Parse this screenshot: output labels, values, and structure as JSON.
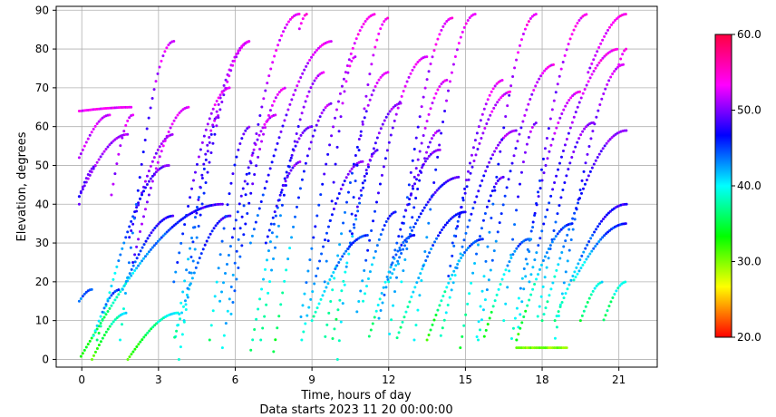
{
  "chart_data": {
    "type": "scatter",
    "xlabel": "Time, hours of day",
    "ylabel": "Elevation, degrees",
    "subtitle": "Data starts 2023 11 20 00:00:00",
    "xlim": [
      -1.0,
      22.5
    ],
    "ylim": [
      -2,
      91
    ],
    "xticks": [
      0,
      3,
      6,
      9,
      12,
      15,
      18,
      21
    ],
    "yticks": [
      0,
      10,
      20,
      30,
      40,
      50,
      60,
      70,
      80,
      90
    ],
    "grid": true,
    "colorbar": {
      "range": [
        20.0,
        60.0
      ],
      "ticks": [
        "20.0",
        "30.0",
        "40.0",
        "50.0",
        "60.0"
      ],
      "colormap": "gist_rainbow",
      "colors": [
        "#ff0000",
        "#ffff00",
        "#00ff00",
        "#00ffff",
        "#0000ff",
        "#ff00ff",
        "#ff0040"
      ]
    },
    "series_description": "Satellite elevation tracks colored by signal strength",
    "tracks": [
      {
        "start": -0.1,
        "end": 2.0,
        "peak_t": 1.1,
        "peak": 63,
        "start_elev": 52,
        "end_elev": 40,
        "c_low": 47,
        "c_high": 52
      },
      {
        "start": -0.1,
        "end": 3.6,
        "peak_t": 1.8,
        "peak": 58,
        "start_elev": 42,
        "end_elev": 30,
        "c_low": 46,
        "c_high": 51
      },
      {
        "start": -0.1,
        "end": 4.2,
        "peak_t": 2.0,
        "peak": 65,
        "start_elev": 64,
        "end_elev": 25,
        "c_low": 46,
        "c_high": 53
      },
      {
        "start": -0.1,
        "end": 5.5,
        "peak_t": -0.1,
        "peak": 40,
        "start_elev": 40,
        "end_elev": 0,
        "c_low": 32,
        "c_high": 48
      },
      {
        "start": -0.1,
        "end": 3.4,
        "peak_t": 0.6,
        "peak": 50,
        "start_elev": 42,
        "end_elev": 5,
        "c_low": 34,
        "c_high": 50
      },
      {
        "start": -0.1,
        "end": 1.5,
        "peak_t": 0.4,
        "peak": 18,
        "start_elev": 15,
        "end_elev": 5,
        "c_low": 36,
        "c_high": 45
      },
      {
        "start": 0.4,
        "end": 3.8,
        "peak_t": 1.8,
        "peak": 12,
        "start_elev": 0,
        "end_elev": 0,
        "c_low": 30,
        "c_high": 40
      },
      {
        "start": 1.5,
        "end": 6.6,
        "peak_t": 3.6,
        "peak": 82,
        "start_elev": 5,
        "end_elev": 3,
        "c_low": 38,
        "c_high": 53
      },
      {
        "start": 1.6,
        "end": 5.8,
        "peak_t": 3.6,
        "peak": 37,
        "start_elev": 18,
        "end_elev": 5,
        "c_low": 36,
        "c_high": 48
      },
      {
        "start": 3.6,
        "end": 8.0,
        "peak_t": 5.8,
        "peak": 70,
        "start_elev": 20,
        "end_elev": 10,
        "c_low": 40,
        "c_high": 53
      },
      {
        "start": 4.0,
        "end": 7.6,
        "peak_t": 5.4,
        "peak": 63,
        "start_elev": 10,
        "end_elev": 15,
        "c_low": 38,
        "c_high": 52
      },
      {
        "start": 3.8,
        "end": 9.8,
        "peak_t": 6.6,
        "peak": 82,
        "start_elev": 0,
        "end_elev": 30,
        "c_low": 38,
        "c_high": 53
      },
      {
        "start": 5.0,
        "end": 9.0,
        "peak_t": 6.6,
        "peak": 60,
        "start_elev": 5,
        "end_elev": 2,
        "c_low": 36,
        "c_high": 50
      },
      {
        "start": 5.5,
        "end": 8.8,
        "peak_t": 8.5,
        "peak": 89,
        "start_elev": 3,
        "end_elev": 85,
        "c_low": 40,
        "c_high": 54
      },
      {
        "start": 8.5,
        "end": 11.5,
        "peak_t": 8.5,
        "peak": 89,
        "start_elev": 89,
        "end_elev": 8,
        "c_low": 40,
        "c_high": 54
      },
      {
        "start": 7.0,
        "end": 12.0,
        "peak_t": 9.5,
        "peak": 74,
        "start_elev": 5,
        "end_elev": 5,
        "c_low": 36,
        "c_high": 52
      },
      {
        "start": 7.5,
        "end": 12.5,
        "peak_t": 9.8,
        "peak": 66,
        "start_elev": 2,
        "end_elev": 5,
        "c_low": 34,
        "c_high": 51
      },
      {
        "start": 7.2,
        "end": 11.0,
        "peak_t": 8.6,
        "peak": 51,
        "start_elev": 30,
        "end_elev": 5,
        "c_low": 38,
        "c_high": 50
      },
      {
        "start": 9.5,
        "end": 13.5,
        "peak_t": 10.7,
        "peak": 78,
        "start_elev": 20,
        "end_elev": 10,
        "c_low": 40,
        "c_high": 53
      },
      {
        "start": 10.0,
        "end": 14.5,
        "peak_t": 12.0,
        "peak": 88,
        "start_elev": 0,
        "end_elev": 5,
        "c_low": 38,
        "c_high": 54
      },
      {
        "start": 10.5,
        "end": 14.0,
        "peak_t": 11.6,
        "peak": 54,
        "start_elev": 30,
        "end_elev": 10,
        "c_low": 40,
        "c_high": 50
      },
      {
        "start": 9.0,
        "end": 13.0,
        "peak_t": 11.2,
        "peak": 32,
        "start_elev": 10,
        "end_elev": 5,
        "c_low": 34,
        "c_high": 46
      },
      {
        "start": 11.0,
        "end": 15.0,
        "peak_t": 12.3,
        "peak": 38,
        "start_elev": 15,
        "end_elev": 5,
        "c_low": 34,
        "c_high": 47
      },
      {
        "start": 12.5,
        "end": 17.0,
        "peak_t": 14.0,
        "peak": 59,
        "start_elev": 20,
        "end_elev": 5,
        "c_low": 36,
        "c_high": 51
      },
      {
        "start": 12.8,
        "end": 16.5,
        "peak_t": 14.3,
        "peak": 72,
        "start_elev": 40,
        "end_elev": 20,
        "c_low": 40,
        "c_high": 53
      },
      {
        "start": 12.0,
        "end": 16.5,
        "peak_t": 14.8,
        "peak": 47,
        "start_elev": 20,
        "end_elev": 3,
        "c_low": 34,
        "c_high": 49
      },
      {
        "start": 13.0,
        "end": 17.8,
        "peak_t": 15.4,
        "peak": 89,
        "start_elev": 5,
        "end_elev": 3,
        "c_low": 38,
        "c_high": 54
      },
      {
        "start": 13.5,
        "end": 17.5,
        "peak_t": 15.7,
        "peak": 31,
        "start_elev": 5,
        "end_elev": 5,
        "c_low": 30,
        "c_high": 45
      },
      {
        "start": 14.5,
        "end": 19.5,
        "peak_t": 16.8,
        "peak": 69,
        "start_elev": 30,
        "end_elev": 5,
        "c_low": 38,
        "c_high": 53
      },
      {
        "start": 15.5,
        "end": 21.2,
        "peak_t": 18.5,
        "peak": 76,
        "start_elev": 5,
        "end_elev": 5,
        "c_low": 38,
        "c_high": 53
      },
      {
        "start": 16.5,
        "end": 20.0,
        "peak_t": 17.8,
        "peak": 61,
        "start_elev": 10,
        "end_elev": 10,
        "c_low": 36,
        "c_high": 51
      },
      {
        "start": 17.0,
        "end": 21.3,
        "peak_t": 19.8,
        "peak": 89,
        "start_elev": 5,
        "end_elev": 74,
        "c_low": 38,
        "c_high": 54
      },
      {
        "start": 17.5,
        "end": 21.3,
        "peak_t": 21.0,
        "peak": 80,
        "start_elev": 20,
        "end_elev": 76,
        "c_low": 38,
        "c_high": 54
      },
      {
        "start": 18.0,
        "end": 21.3,
        "peak_t": 21.3,
        "peak": 59,
        "start_elev": 10,
        "end_elev": 59,
        "c_low": 34,
        "c_high": 51
      },
      {
        "start": 18.5,
        "end": 21.3,
        "peak_t": 21.3,
        "peak": 40,
        "start_elev": 10,
        "end_elev": 40,
        "c_low": 34,
        "c_high": 48
      },
      {
        "start": 17.0,
        "end": 21.3,
        "peak_t": 19.2,
        "peak": 35,
        "start_elev": 5,
        "end_elev": 20,
        "c_low": 30,
        "c_high": 46
      },
      {
        "start": 17.0,
        "end": 19.0,
        "peak_t": 17.5,
        "peak": 3,
        "start_elev": 3,
        "end_elev": 3,
        "c_low": 28,
        "c_high": 30
      },
      {
        "start": 19.5,
        "end": 21.3,
        "peak_t": 20.4,
        "peak": 20,
        "start_elev": 10,
        "end_elev": 10,
        "c_low": 30,
        "c_high": 40
      }
    ]
  }
}
